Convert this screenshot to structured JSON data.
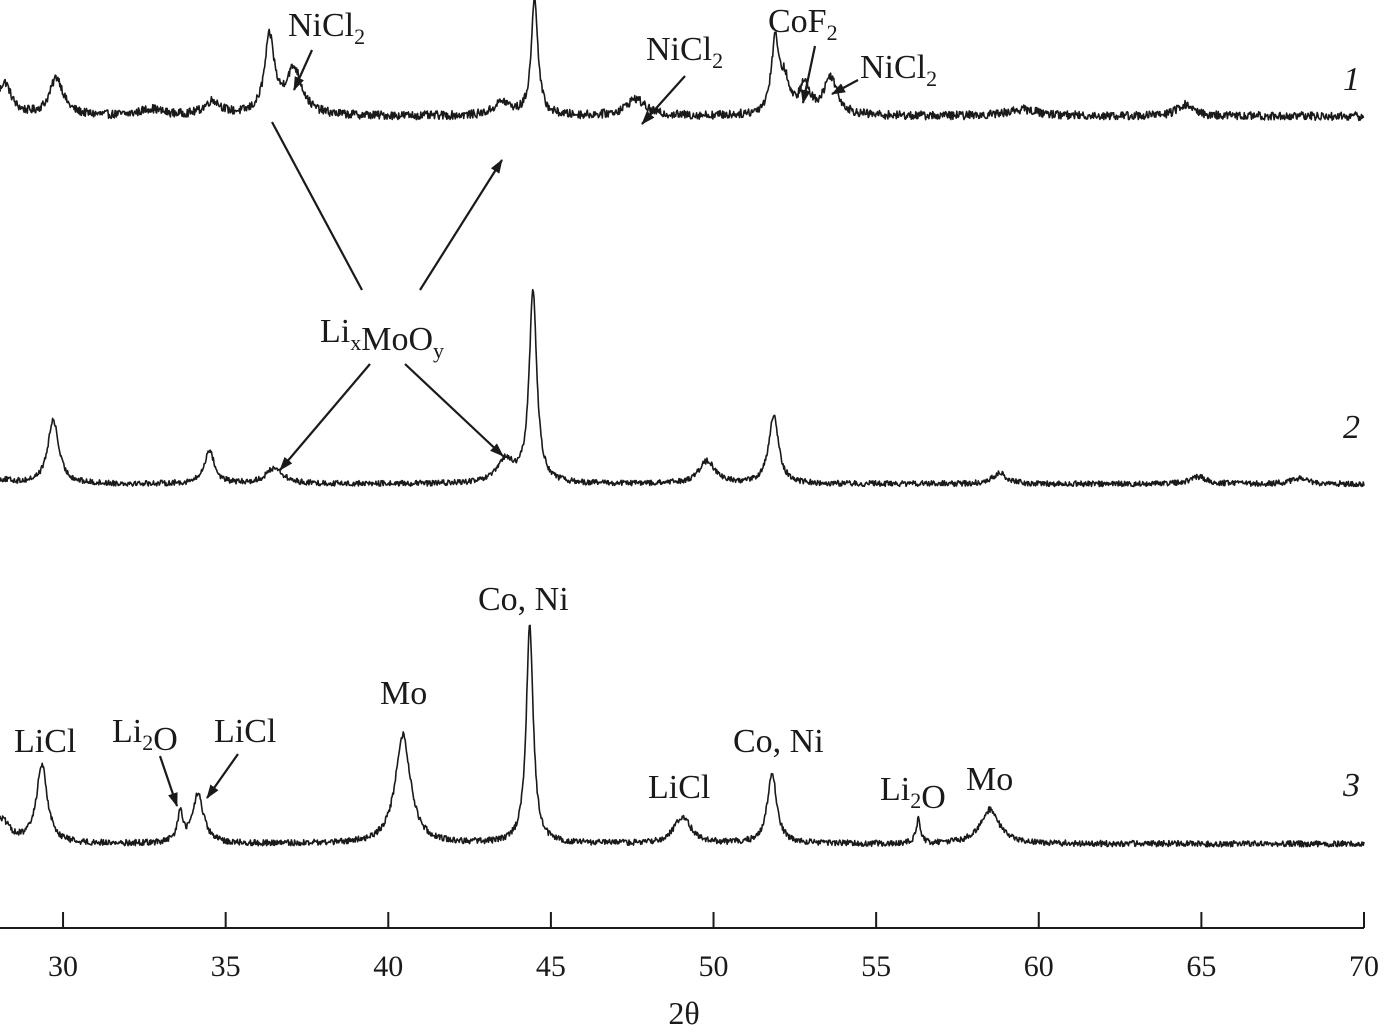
{
  "chart_data": {
    "type": "line",
    "xlabel": "2θ",
    "ylabel": "",
    "xlim": [
      28,
      70
    ],
    "x_ticks": [
      30,
      35,
      40,
      45,
      50,
      55,
      60,
      65,
      70
    ],
    "grid": false,
    "legend": "none",
    "series": [
      {
        "name": "1",
        "baseline": 0.25,
        "noise": 0.045,
        "peaks": [
          {
            "x": 28.2,
            "h": 0.35,
            "w": 0.25
          },
          {
            "x": 29.8,
            "h": 0.4,
            "w": 0.25
          },
          {
            "x": 32.7,
            "h": 0.07,
            "w": 0.4
          },
          {
            "x": 34.6,
            "h": 0.15,
            "w": 0.3
          },
          {
            "x": 36.35,
            "h": 0.8,
            "w": 0.18
          },
          {
            "x": 37.1,
            "h": 0.48,
            "w": 0.3
          },
          {
            "x": 43.5,
            "h": 0.14,
            "w": 0.3
          },
          {
            "x": 44.5,
            "h": 1.25,
            "w": 0.12
          },
          {
            "x": 47.6,
            "h": 0.18,
            "w": 0.35
          },
          {
            "x": 51.9,
            "h": 0.78,
            "w": 0.15
          },
          {
            "x": 52.2,
            "h": 0.3,
            "w": 0.15
          },
          {
            "x": 52.8,
            "h": 0.3,
            "w": 0.2
          },
          {
            "x": 53.6,
            "h": 0.4,
            "w": 0.25
          },
          {
            "x": 59.5,
            "h": 0.07,
            "w": 0.6
          },
          {
            "x": 64.5,
            "h": 0.12,
            "w": 0.3
          }
        ]
      },
      {
        "name": "2",
        "baseline": 0.05,
        "noise": 0.035,
        "peaks": [
          {
            "x": 28.1,
            "h": 0.05,
            "w": 0.4
          },
          {
            "x": 29.7,
            "h": 0.8,
            "w": 0.2
          },
          {
            "x": 34.5,
            "h": 0.42,
            "w": 0.18
          },
          {
            "x": 36.5,
            "h": 0.2,
            "w": 0.3
          },
          {
            "x": 43.6,
            "h": 0.28,
            "w": 0.3
          },
          {
            "x": 44.45,
            "h": 2.4,
            "w": 0.14
          },
          {
            "x": 49.8,
            "h": 0.28,
            "w": 0.3
          },
          {
            "x": 51.85,
            "h": 0.85,
            "w": 0.18
          },
          {
            "x": 58.8,
            "h": 0.14,
            "w": 0.25
          },
          {
            "x": 64.9,
            "h": 0.09,
            "w": 0.3
          },
          {
            "x": 68.0,
            "h": 0.07,
            "w": 0.3
          }
        ]
      },
      {
        "name": "3",
        "baseline": 0.06,
        "noise": 0.045,
        "peaks": [
          {
            "x": 28.1,
            "h": 0.35,
            "w": 0.3
          },
          {
            "x": 29.35,
            "h": 1.15,
            "w": 0.2
          },
          {
            "x": 33.6,
            "h": 0.42,
            "w": 0.1
          },
          {
            "x": 34.15,
            "h": 0.72,
            "w": 0.2
          },
          {
            "x": 40.45,
            "h": 1.6,
            "w": 0.28
          },
          {
            "x": 44.35,
            "h": 3.2,
            "w": 0.13
          },
          {
            "x": 49.05,
            "h": 0.4,
            "w": 0.3
          },
          {
            "x": 51.8,
            "h": 1.05,
            "w": 0.17
          },
          {
            "x": 56.3,
            "h": 0.35,
            "w": 0.08
          },
          {
            "x": 58.5,
            "h": 0.5,
            "w": 0.35
          }
        ]
      }
    ],
    "annotations": [
      {
        "text": "NiCl",
        "sub": "2",
        "series": "1"
      },
      {
        "text": "NiCl",
        "sub": "2",
        "series": "1"
      },
      {
        "text": "CoF",
        "sub": "2",
        "series": "1"
      },
      {
        "text": "NiCl",
        "sub": "2",
        "series": "1"
      },
      {
        "text": "Li",
        "sub": "x",
        "text2": "MoO",
        "sub2": "y",
        "series": "1,2"
      },
      {
        "text": "LiCl",
        "series": "3"
      },
      {
        "text": "Li",
        "sub": "2",
        "text2": "O",
        "series": "3"
      },
      {
        "text": "LiCl",
        "series": "3"
      },
      {
        "text": "Mo",
        "series": "3"
      },
      {
        "text": "Co, Ni",
        "series": "3"
      },
      {
        "text": "LiCl",
        "series": "3"
      },
      {
        "text": "Co, Ni",
        "series": "3"
      },
      {
        "text": "Li",
        "sub": "2",
        "text2": "O",
        "series": "3"
      },
      {
        "text": "Mo",
        "series": "3"
      }
    ]
  }
}
